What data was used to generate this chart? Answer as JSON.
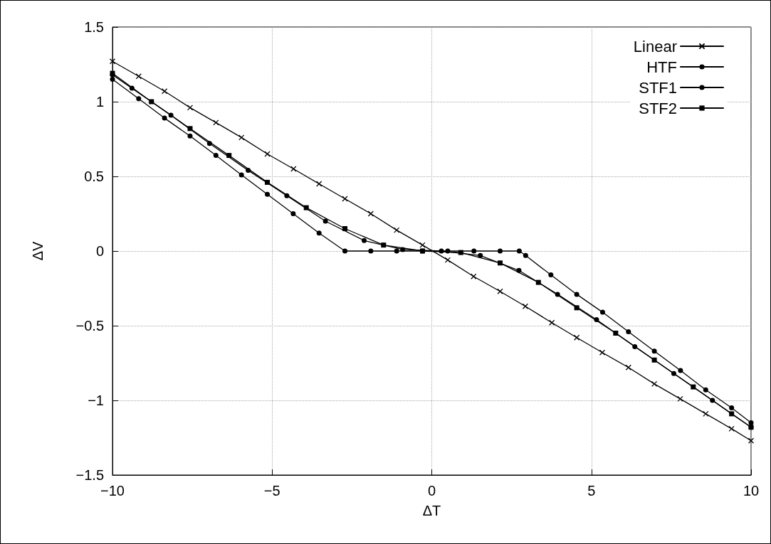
{
  "chart_data": {
    "type": "line",
    "xlabel": "ΔT",
    "ylabel": "ΔV",
    "xlim": [
      -10,
      10
    ],
    "xticks": [
      {
        "value": -10,
        "label": "−10"
      },
      {
        "value": -5,
        "label": "−5"
      },
      0,
      5,
      10
    ],
    "ylim": [
      -1.5,
      1.5
    ],
    "yticks": [
      {
        "value": -1.5,
        "label": "−1.5"
      },
      {
        "value": -1,
        "label": "−1"
      },
      {
        "value": -0.5,
        "label": "−0.5"
      },
      0,
      0.5,
      1,
      1.5
    ],
    "grid": true,
    "legend": "top right",
    "line_style": "solid",
    "series": [
      {
        "name": "Linear",
        "color": "#000000",
        "marker": "cross",
        "x": [
          -10,
          -9.18,
          -8.37,
          -7.57,
          -6.76,
          -5.96,
          -5.15,
          -4.33,
          -3.53,
          -2.72,
          -1.91,
          -1.1,
          -0.29,
          0.5,
          1.31,
          2.14,
          2.93,
          3.76,
          4.54,
          5.34,
          6.16,
          6.97,
          7.78,
          8.58,
          9.39,
          10
        ],
        "values": [
          1.27,
          1.17,
          1.07,
          0.96,
          0.86,
          0.76,
          0.65,
          0.55,
          0.45,
          0.35,
          0.25,
          0.14,
          0.04,
          -0.06,
          -0.17,
          -0.27,
          -0.37,
          -0.48,
          -0.58,
          -0.68,
          -0.78,
          -0.89,
          -0.99,
          -1.09,
          -1.19,
          -1.27
        ]
      },
      {
        "name": "HTF",
        "color": "#000000",
        "marker": "circle",
        "x": [
          -10,
          -9.18,
          -8.37,
          -7.57,
          -6.76,
          -5.96,
          -5.15,
          -4.34,
          -3.53,
          -2.72,
          -1.91,
          -1.1,
          -0.29,
          0.5,
          1.32,
          2.14,
          2.74,
          2.94,
          3.73,
          4.54,
          5.35,
          6.16,
          6.97,
          7.79,
          8.58,
          9.39,
          10
        ],
        "values": [
          1.15,
          1.02,
          0.89,
          0.77,
          0.64,
          0.51,
          0.38,
          0.25,
          0.12,
          0,
          0,
          0,
          0,
          0,
          0,
          0,
          0,
          -0.03,
          -0.16,
          -0.29,
          -0.41,
          -0.54,
          -0.67,
          -0.8,
          -0.93,
          -1.05,
          -1.15
        ]
      },
      {
        "name": "STF1",
        "color": "#000000",
        "marker": "circle",
        "x": [
          -10,
          -9.39,
          -8.17,
          -6.96,
          -5.75,
          -4.54,
          -3.33,
          -2.12,
          -0.91,
          0.3,
          1.52,
          2.73,
          3.94,
          5.16,
          6.36,
          7.58,
          8.79,
          10
        ],
        "values": [
          1.18,
          1.09,
          0.91,
          0.72,
          0.54,
          0.37,
          0.2,
          0.07,
          0.01,
          0,
          -0.03,
          -0.13,
          -0.29,
          -0.46,
          -0.64,
          -0.82,
          -1,
          -1.18
        ]
      },
      {
        "name": "STF2",
        "color": "#000000",
        "marker": "square",
        "x": [
          -10,
          -8.78,
          -7.57,
          -6.35,
          -5.15,
          -3.93,
          -2.72,
          -1.51,
          -0.29,
          0.91,
          2.14,
          3.34,
          4.54,
          5.76,
          6.97,
          8.19,
          9.39,
          10
        ],
        "values": [
          1.19,
          1,
          0.82,
          0.64,
          0.46,
          0.29,
          0.15,
          0.04,
          0,
          -0.01,
          -0.08,
          -0.21,
          -0.38,
          -0.55,
          -0.73,
          -0.91,
          -1.09,
          -1.18
        ]
      }
    ]
  }
}
